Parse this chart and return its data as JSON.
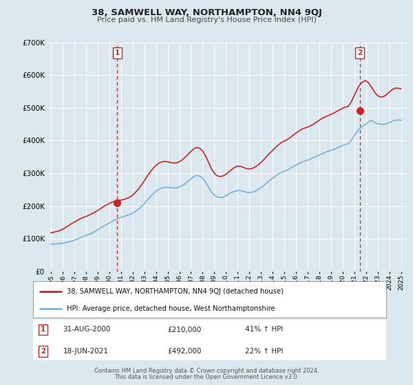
{
  "title": "38, SAMWELL WAY, NORTHAMPTON, NN4 9QJ",
  "subtitle": "Price paid vs. HM Land Registry's House Price Index (HPI)",
  "background_color": "#dce8f0",
  "plot_bg_color": "#dce8f0",
  "ylim": [
    0,
    700000
  ],
  "yticks": [
    0,
    100000,
    200000,
    300000,
    400000,
    500000,
    600000,
    700000
  ],
  "xlim_start": 1994.7,
  "xlim_end": 2025.5,
  "xtick_years": [
    1995,
    1996,
    1997,
    1998,
    1999,
    2000,
    2001,
    2002,
    2003,
    2004,
    2005,
    2006,
    2007,
    2008,
    2009,
    2010,
    2011,
    2012,
    2013,
    2014,
    2015,
    2016,
    2017,
    2018,
    2019,
    2020,
    2021,
    2022,
    2023,
    2024,
    2025
  ],
  "sale1_x": 2000.67,
  "sale1_y": 210000,
  "sale1_label": "1",
  "sale1_date": "31-AUG-2000",
  "sale1_price": "£210,000",
  "sale1_hpi": "41% ↑ HPI",
  "sale2_x": 2021.46,
  "sale2_y": 492000,
  "sale2_label": "2",
  "sale2_date": "18-JUN-2021",
  "sale2_price": "£492,000",
  "sale2_hpi": "22% ↑ HPI",
  "hpi_line_color": "#7ab0d4",
  "price_line_color": "#cc2222",
  "vline_color": "#cc2222",
  "grid_color": "#ffffff",
  "legend_label_price": "38, SAMWELL WAY, NORTHAMPTON, NN4 9QJ (detached house)",
  "legend_label_hpi": "HPI: Average price, detached house, West Northamptonshire",
  "footer1": "Contains HM Land Registry data © Crown copyright and database right 2024.",
  "footer2": "This data is licensed under the Open Government Licence v3.0.",
  "hpi_data_x": [
    1995.0,
    1995.25,
    1995.5,
    1995.75,
    1996.0,
    1996.25,
    1996.5,
    1996.75,
    1997.0,
    1997.25,
    1997.5,
    1997.75,
    1998.0,
    1998.25,
    1998.5,
    1998.75,
    1999.0,
    1999.25,
    1999.5,
    1999.75,
    2000.0,
    2000.25,
    2000.5,
    2000.75,
    2001.0,
    2001.25,
    2001.5,
    2001.75,
    2002.0,
    2002.25,
    2002.5,
    2002.75,
    2003.0,
    2003.25,
    2003.5,
    2003.75,
    2004.0,
    2004.25,
    2004.5,
    2004.75,
    2005.0,
    2005.25,
    2005.5,
    2005.75,
    2006.0,
    2006.25,
    2006.5,
    2006.75,
    2007.0,
    2007.25,
    2007.5,
    2007.75,
    2008.0,
    2008.25,
    2008.5,
    2008.75,
    2009.0,
    2009.25,
    2009.5,
    2009.75,
    2010.0,
    2010.25,
    2010.5,
    2010.75,
    2011.0,
    2011.25,
    2011.5,
    2011.75,
    2012.0,
    2012.25,
    2012.5,
    2012.75,
    2013.0,
    2013.25,
    2013.5,
    2013.75,
    2014.0,
    2014.25,
    2014.5,
    2014.75,
    2015.0,
    2015.25,
    2015.5,
    2015.75,
    2016.0,
    2016.25,
    2016.5,
    2016.75,
    2017.0,
    2017.25,
    2017.5,
    2017.75,
    2018.0,
    2018.25,
    2018.5,
    2018.75,
    2019.0,
    2019.25,
    2019.5,
    2019.75,
    2020.0,
    2020.25,
    2020.5,
    2020.75,
    2021.0,
    2021.25,
    2021.5,
    2021.75,
    2022.0,
    2022.25,
    2022.5,
    2022.75,
    2023.0,
    2023.25,
    2023.5,
    2023.75,
    2024.0,
    2024.25,
    2024.5,
    2024.75,
    2025.0
  ],
  "hpi_data_y": [
    83000,
    83500,
    84000,
    85000,
    86000,
    88000,
    90000,
    92000,
    95000,
    99000,
    103000,
    107000,
    110000,
    113000,
    117000,
    122000,
    127000,
    133000,
    138000,
    143000,
    148000,
    153000,
    158000,
    162000,
    165000,
    168000,
    171000,
    174000,
    178000,
    184000,
    190000,
    198000,
    207000,
    218000,
    228000,
    237000,
    245000,
    251000,
    255000,
    257000,
    257000,
    256000,
    255000,
    255000,
    258000,
    262000,
    268000,
    276000,
    283000,
    290000,
    293000,
    291000,
    285000,
    273000,
    258000,
    243000,
    233000,
    228000,
    226000,
    227000,
    231000,
    237000,
    242000,
    245000,
    247000,
    247000,
    245000,
    242000,
    241000,
    242000,
    245000,
    250000,
    256000,
    263000,
    271000,
    278000,
    285000,
    292000,
    298000,
    303000,
    306000,
    310000,
    315000,
    320000,
    325000,
    330000,
    334000,
    337000,
    340000,
    344000,
    348000,
    352000,
    356000,
    360000,
    364000,
    367000,
    370000,
    373000,
    377000,
    381000,
    385000,
    388000,
    390000,
    401000,
    415000,
    428000,
    438000,
    445000,
    450000,
    458000,
    462000,
    455000,
    452000,
    450000,
    449000,
    451000,
    455000,
    459000,
    462000,
    463000,
    462000
  ],
  "price_data_x": [
    1995.0,
    1995.25,
    1995.5,
    1995.75,
    1996.0,
    1996.25,
    1996.5,
    1996.75,
    1997.0,
    1997.25,
    1997.5,
    1997.75,
    1998.0,
    1998.25,
    1998.5,
    1998.75,
    1999.0,
    1999.25,
    1999.5,
    1999.75,
    2000.0,
    2000.25,
    2000.5,
    2000.75,
    2001.0,
    2001.25,
    2001.5,
    2001.75,
    2002.0,
    2002.25,
    2002.5,
    2002.75,
    2003.0,
    2003.25,
    2003.5,
    2003.75,
    2004.0,
    2004.25,
    2004.5,
    2004.75,
    2005.0,
    2005.25,
    2005.5,
    2005.75,
    2006.0,
    2006.25,
    2006.5,
    2006.75,
    2007.0,
    2007.25,
    2007.5,
    2007.75,
    2008.0,
    2008.25,
    2008.5,
    2008.75,
    2009.0,
    2009.25,
    2009.5,
    2009.75,
    2010.0,
    2010.25,
    2010.5,
    2010.75,
    2011.0,
    2011.25,
    2011.5,
    2011.75,
    2012.0,
    2012.25,
    2012.5,
    2012.75,
    2013.0,
    2013.25,
    2013.5,
    2013.75,
    2014.0,
    2014.25,
    2014.5,
    2014.75,
    2015.0,
    2015.25,
    2015.5,
    2015.75,
    2016.0,
    2016.25,
    2016.5,
    2016.75,
    2017.0,
    2017.25,
    2017.5,
    2017.75,
    2018.0,
    2018.25,
    2018.5,
    2018.75,
    2019.0,
    2019.25,
    2019.5,
    2019.75,
    2020.0,
    2020.25,
    2020.5,
    2020.75,
    2021.0,
    2021.25,
    2021.5,
    2021.75,
    2022.0,
    2022.25,
    2022.5,
    2022.75,
    2023.0,
    2023.25,
    2023.5,
    2023.75,
    2024.0,
    2024.25,
    2024.5,
    2024.75,
    2025.0
  ],
  "price_data_y": [
    118000,
    120000,
    122000,
    125000,
    129000,
    134000,
    140000,
    146000,
    151000,
    156000,
    161000,
    165000,
    168000,
    172000,
    176000,
    181000,
    186000,
    192000,
    198000,
    203000,
    208000,
    212000,
    215000,
    217000,
    218000,
    220000,
    223000,
    227000,
    233000,
    242000,
    252000,
    264000,
    277000,
    291000,
    304000,
    315000,
    324000,
    331000,
    335000,
    336000,
    335000,
    333000,
    331000,
    332000,
    335000,
    341000,
    349000,
    358000,
    367000,
    375000,
    379000,
    376000,
    368000,
    353000,
    334000,
    314000,
    300000,
    292000,
    290000,
    292000,
    297000,
    305000,
    312000,
    318000,
    322000,
    321000,
    318000,
    314000,
    313000,
    315000,
    319000,
    325000,
    333000,
    342000,
    352000,
    361000,
    370000,
    379000,
    387000,
    394000,
    399000,
    403000,
    409000,
    416000,
    423000,
    429000,
    435000,
    438000,
    441000,
    445000,
    450000,
    456000,
    462000,
    468000,
    472000,
    476000,
    480000,
    484000,
    489000,
    494000,
    499000,
    502000,
    505000,
    519000,
    538000,
    557000,
    572000,
    580000,
    583000,
    575000,
    562000,
    547000,
    537000,
    533000,
    534000,
    540000,
    548000,
    556000,
    560000,
    560000,
    558000
  ]
}
